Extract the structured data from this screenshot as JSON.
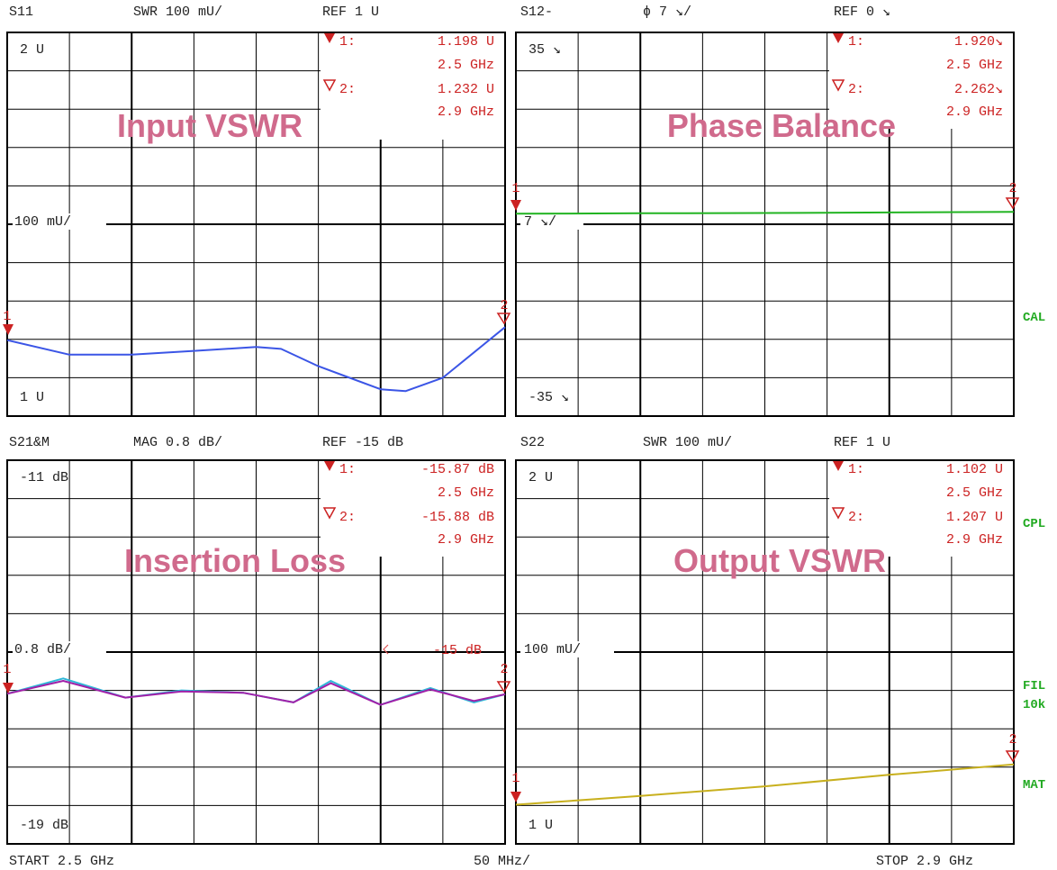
{
  "side_labels": [
    "CAL",
    "CPL",
    "FIL",
    "10k",
    "MAT"
  ],
  "footer": {
    "start": "START  2.5 GHz",
    "div": "50 MHz/",
    "stop": "STOP 2.9 GHz"
  },
  "chart_data": [
    {
      "type": "line",
      "title": "Input VSWR",
      "header": {
        "param": "S11",
        "scale": "SWR 100 mU/",
        "ref": "REF 1 U"
      },
      "ylabels": {
        "top": "2 U",
        "mid": "100 mU/",
        "bottom": "1 U"
      },
      "ylim": [
        1,
        2
      ],
      "xlim": [
        2.5,
        2.9
      ],
      "markers": [
        {
          "id": "1:",
          "value": "1.198  U",
          "freq": "2.5 GHz"
        },
        {
          "id": "2:",
          "value": "1.232  U",
          "freq": "2.9 GHz"
        }
      ],
      "series": [
        {
          "color": "#3b55e6",
          "x": [
            2.5,
            2.55,
            2.6,
            2.65,
            2.7,
            2.72,
            2.75,
            2.8,
            2.82,
            2.85,
            2.9
          ],
          "y": [
            1.198,
            1.16,
            1.16,
            1.17,
            1.18,
            1.175,
            1.13,
            1.07,
            1.065,
            1.1,
            1.232
          ]
        }
      ]
    },
    {
      "type": "line",
      "title": "Phase Balance",
      "header": {
        "param": "S12-",
        "scale": "ϕ    7 ↘/",
        "ref": "REF 0 ↘"
      },
      "ylabels": {
        "top": "35 ↘",
        "mid": "7 ↘/",
        "bottom": "-35 ↘"
      },
      "ylim": [
        -35,
        35
      ],
      "xlim": [
        2.5,
        2.9
      ],
      "markers": [
        {
          "id": "1:",
          "value": "1.920↘",
          "freq": "2.5 GHz"
        },
        {
          "id": "2:",
          "value": "2.262↘",
          "freq": "2.9 GHz"
        }
      ],
      "series": [
        {
          "color": "#22b422",
          "x": [
            2.5,
            2.6,
            2.7,
            2.8,
            2.9
          ],
          "y": [
            1.92,
            2.0,
            2.05,
            2.15,
            2.262
          ]
        }
      ]
    },
    {
      "type": "line",
      "title": "Insertion Loss",
      "header": {
        "param": "S21&M",
        "scale": "MAG 0.8 dB/",
        "ref": "REF -15 dB"
      },
      "ylabels": {
        "top": "-11 dB",
        "mid": "0.8 dB/",
        "bottom": "-19 dB"
      },
      "ref_label": "-15  dB",
      "ylim": [
        -19,
        -11
      ],
      "xlim": [
        2.5,
        2.9
      ],
      "markers": [
        {
          "id": "1:",
          "value": "-15.87 dB",
          "freq": "2.5 GHz"
        },
        {
          "id": "2:",
          "value": "-15.88 dB",
          "freq": "2.9 GHz"
        }
      ],
      "series": [
        {
          "color": "#2fb8d8",
          "x": [
            2.5,
            2.545,
            2.595,
            2.64,
            2.69,
            2.73,
            2.76,
            2.8,
            2.84,
            2.875,
            2.9
          ],
          "y": [
            -15.87,
            -15.55,
            -15.95,
            -15.8,
            -15.85,
            -16.05,
            -15.6,
            -16.1,
            -15.75,
            -16.05,
            -15.88
          ]
        },
        {
          "color": "#a020a8",
          "x": [
            2.5,
            2.545,
            2.595,
            2.64,
            2.69,
            2.73,
            2.76,
            2.8,
            2.84,
            2.875,
            2.9
          ],
          "y": [
            -15.87,
            -15.6,
            -15.95,
            -15.82,
            -15.85,
            -16.05,
            -15.65,
            -16.1,
            -15.78,
            -16.02,
            -15.88
          ]
        }
      ]
    },
    {
      "type": "line",
      "title": "Output VSWR",
      "header": {
        "param": "S22",
        "scale": "SWR 100 mU/",
        "ref": "REF 1 U"
      },
      "ylabels": {
        "top": "2 U",
        "mid": "100 mU/",
        "bottom": "1 U"
      },
      "ylim": [
        1,
        2
      ],
      "xlim": [
        2.5,
        2.9
      ],
      "markers": [
        {
          "id": "1:",
          "value": "1.102  U",
          "freq": "2.5 GHz"
        },
        {
          "id": "2:",
          "value": "1.207  U",
          "freq": "2.9 GHz"
        }
      ],
      "series": [
        {
          "color": "#c8b01e",
          "x": [
            2.5,
            2.6,
            2.7,
            2.8,
            2.9
          ],
          "y": [
            1.102,
            1.125,
            1.15,
            1.18,
            1.207
          ]
        }
      ]
    }
  ]
}
